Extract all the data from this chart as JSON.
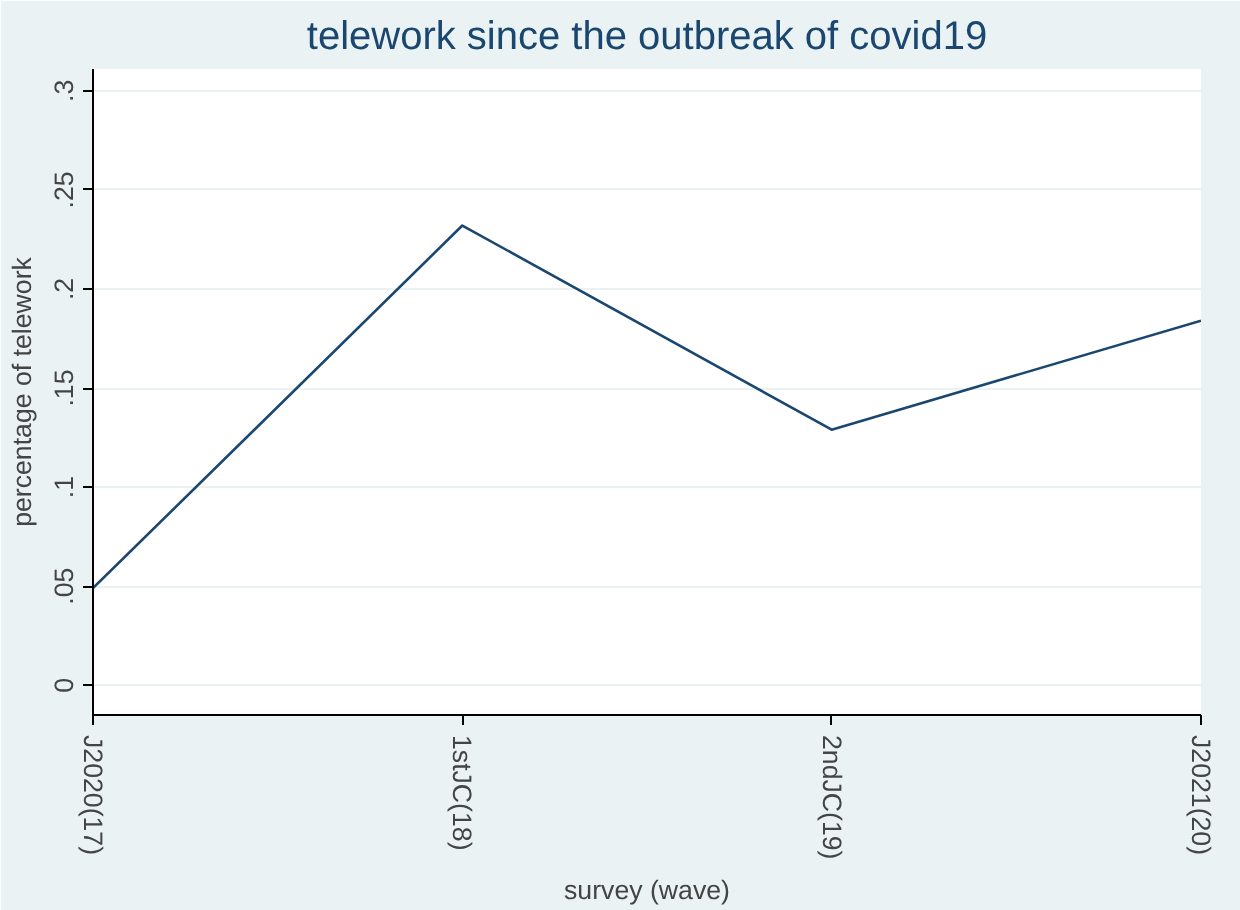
{
  "chart_data": {
    "type": "line",
    "title": "telework since the outbreak of covid19",
    "xlabel": "survey (wave)",
    "ylabel": "percentage of telework",
    "categories": [
      "J2020(17)",
      "1stJC(18)",
      "2ndJC(19)",
      "J2021(20)"
    ],
    "series": [
      {
        "color": "#1a476f",
        "values": [
          0.049,
          0.232,
          0.129,
          0.184
        ]
      }
    ],
    "ylim": [
      -0.015,
      0.311
    ],
    "yticks": [
      {
        "value": 0,
        "label": "0"
      },
      {
        "value": 0.05,
        "label": ".05"
      },
      {
        "value": 0.1,
        "label": ".1"
      },
      {
        "value": 0.15,
        "label": ".15"
      },
      {
        "value": 0.2,
        "label": ".2"
      },
      {
        "value": 0.25,
        "label": ".25"
      },
      {
        "value": 0.3,
        "label": ".3"
      }
    ],
    "grid": "y",
    "marker": "none",
    "line_style": "solid"
  }
}
